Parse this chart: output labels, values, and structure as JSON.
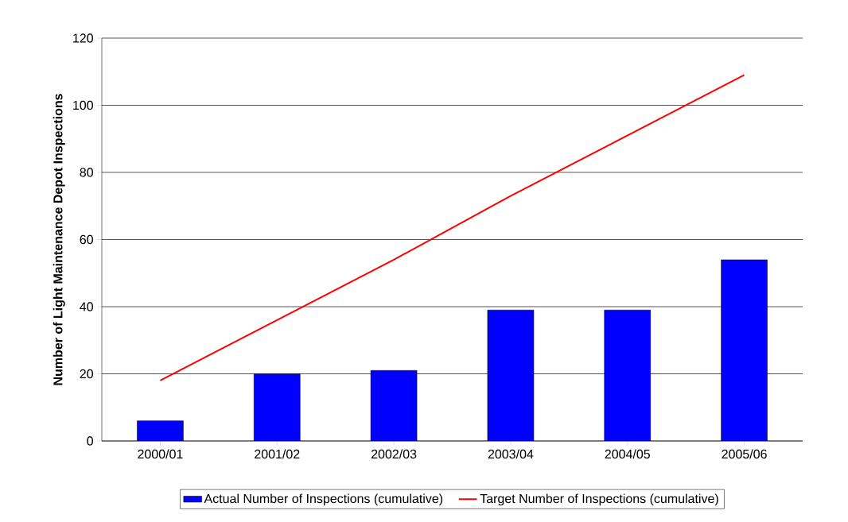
{
  "chart_data": {
    "type": "bar",
    "ylabel": "Number of Light Maintenance Depot Inspections",
    "categories": [
      "2000/01",
      "2001/02",
      "2002/03",
      "2003/04",
      "2004/05",
      "2005/06"
    ],
    "series": [
      {
        "name": "Actual Number of Inspections (cumulative)",
        "color": "#0000ff",
        "values": [
          6,
          20,
          21,
          39,
          39,
          54
        ]
      },
      {
        "name": "Target Number of Inspections (cumulative)",
        "type": "line",
        "color": "#ff0000",
        "values": [
          18,
          36,
          54,
          73,
          91,
          109
        ]
      }
    ],
    "ylim": [
      0,
      120
    ],
    "yticks": [
      0,
      20,
      40,
      60,
      80,
      100,
      120
    ],
    "grid": "y",
    "legend": "bottom",
    "marker": "none"
  }
}
